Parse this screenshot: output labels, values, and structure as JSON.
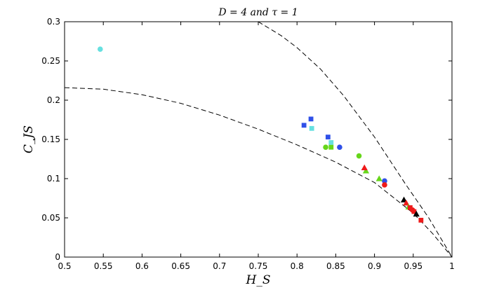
{
  "chart_data": {
    "type": "scatter",
    "title": "D = 4 and τ = 1",
    "xlabel": "H_S",
    "ylabel": "C_JS",
    "xlim": [
      0.5,
      1.0
    ],
    "ylim": [
      0.0,
      0.3
    ],
    "xticks": [
      "0.5",
      "0.55",
      "0.6",
      "0.65",
      "0.7",
      "0.75",
      "0.8",
      "0.85",
      "0.9",
      "0.95",
      "1"
    ],
    "yticks": [
      "0",
      "0.05",
      "0.1",
      "0.15",
      "0.2",
      "0.25",
      "0.3"
    ],
    "grid": false,
    "colors": {
      "cyan": "#66e0e0",
      "blue": "#2f50e8",
      "green": "#66d61a",
      "red": "#ee1a1a",
      "black": "#000000",
      "curve": "#000000"
    },
    "reference_curves": [
      {
        "style": "dashed",
        "points": [
          [
            0.5,
            0.216
          ],
          [
            0.55,
            0.214
          ],
          [
            0.6,
            0.207
          ],
          [
            0.65,
            0.196
          ],
          [
            0.7,
            0.181
          ],
          [
            0.75,
            0.163
          ],
          [
            0.8,
            0.143
          ],
          [
            0.85,
            0.121
          ],
          [
            0.9,
            0.095
          ],
          [
            0.95,
            0.056
          ],
          [
            0.975,
            0.03
          ],
          [
            1.0,
            0.0
          ]
        ]
      },
      {
        "style": "dashed",
        "points": [
          [
            0.75,
            0.3
          ],
          [
            0.78,
            0.282
          ],
          [
            0.8,
            0.267
          ],
          [
            0.83,
            0.24
          ],
          [
            0.86,
            0.206
          ],
          [
            0.9,
            0.153
          ],
          [
            0.94,
            0.093
          ],
          [
            0.97,
            0.05
          ],
          [
            1.0,
            0.0
          ]
        ]
      }
    ],
    "points": [
      {
        "x": 0.546,
        "y": 0.265,
        "marker": "circle",
        "color": "cyan"
      },
      {
        "x": 0.819,
        "y": 0.164,
        "marker": "square",
        "color": "cyan"
      },
      {
        "x": 0.844,
        "y": 0.146,
        "marker": "square",
        "color": "cyan"
      },
      {
        "x": 0.809,
        "y": 0.168,
        "marker": "square",
        "color": "blue"
      },
      {
        "x": 0.818,
        "y": 0.176,
        "marker": "square",
        "color": "blue"
      },
      {
        "x": 0.84,
        "y": 0.153,
        "marker": "square",
        "color": "blue"
      },
      {
        "x": 0.855,
        "y": 0.14,
        "marker": "circle",
        "color": "blue"
      },
      {
        "x": 0.913,
        "y": 0.097,
        "marker": "circle",
        "color": "blue"
      },
      {
        "x": 0.837,
        "y": 0.14,
        "marker": "circle",
        "color": "green"
      },
      {
        "x": 0.844,
        "y": 0.14,
        "marker": "square",
        "color": "green"
      },
      {
        "x": 0.88,
        "y": 0.129,
        "marker": "circle",
        "color": "green"
      },
      {
        "x": 0.889,
        "y": 0.11,
        "marker": "triangle",
        "color": "green"
      },
      {
        "x": 0.906,
        "y": 0.1,
        "marker": "triangle",
        "color": "green"
      },
      {
        "x": 0.887,
        "y": 0.114,
        "marker": "triangle",
        "color": "red"
      },
      {
        "x": 0.913,
        "y": 0.092,
        "marker": "circle",
        "color": "red"
      },
      {
        "x": 0.938,
        "y": 0.073,
        "marker": "triangle",
        "color": "black"
      },
      {
        "x": 0.941,
        "y": 0.069,
        "marker": "triangle",
        "color": "red"
      },
      {
        "x": 0.944,
        "y": 0.064,
        "marker": "triangle",
        "color": "green"
      },
      {
        "x": 0.946,
        "y": 0.063,
        "marker": "square",
        "color": "red"
      },
      {
        "x": 0.949,
        "y": 0.06,
        "marker": "circle",
        "color": "red"
      },
      {
        "x": 0.951,
        "y": 0.058,
        "marker": "square",
        "color": "red"
      },
      {
        "x": 0.954,
        "y": 0.055,
        "marker": "triangle",
        "color": "black"
      },
      {
        "x": 0.96,
        "y": 0.047,
        "marker": "square",
        "color": "red"
      }
    ]
  }
}
